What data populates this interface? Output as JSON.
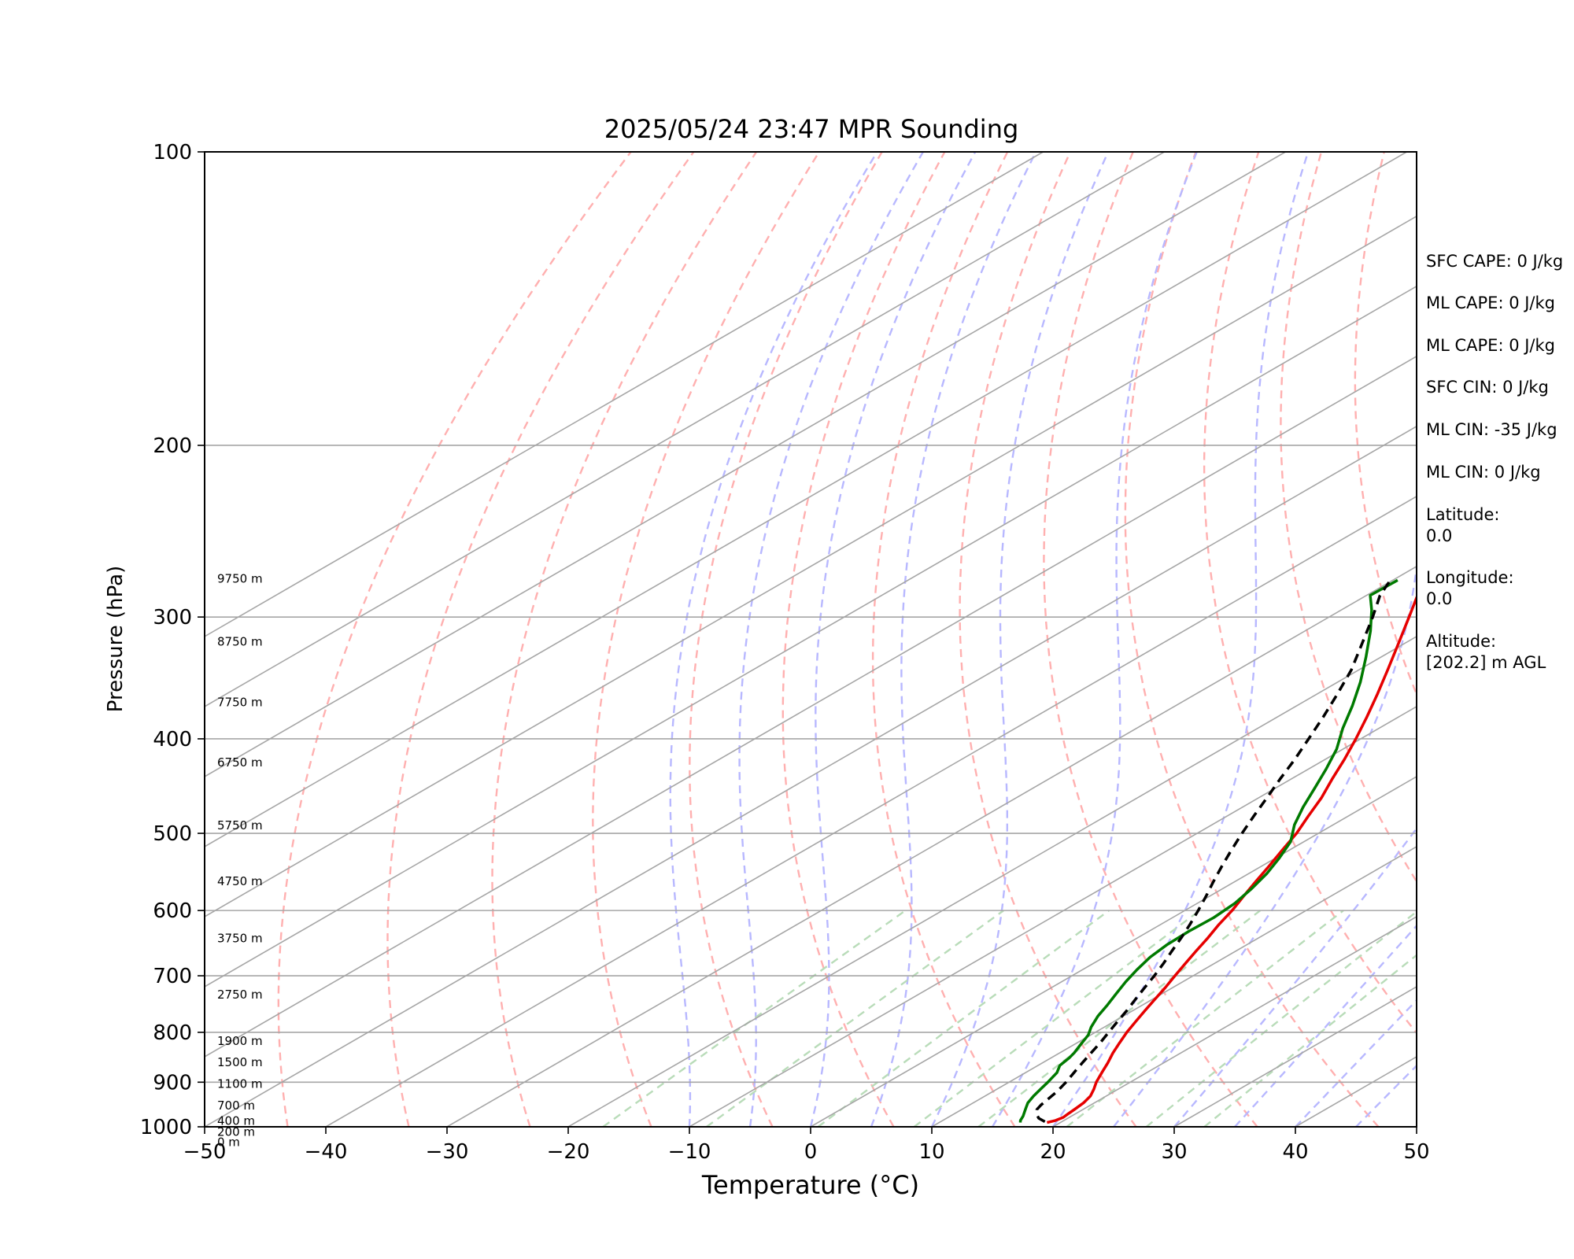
{
  "chart_data": {
    "type": "line",
    "title": "2025/05/24 23:47 MPR Sounding",
    "xlabel": "Temperature (°C)",
    "ylabel": "Pressure (hPa)",
    "xlim": [
      -50,
      50
    ],
    "ylim": [
      1000,
      100
    ],
    "y_scale": "log",
    "skew": "skew-T log-P",
    "grid": true,
    "x_ticks": [
      -50,
      -40,
      -30,
      -20,
      -10,
      0,
      10,
      20,
      30,
      40,
      50
    ],
    "x_tick_labels": [
      "−50",
      "−40",
      "−30",
      "−20",
      "−10",
      "0",
      "10",
      "20",
      "30",
      "40",
      "50"
    ],
    "y_ticks": [
      100,
      200,
      300,
      400,
      500,
      600,
      700,
      800,
      900,
      1000
    ],
    "y_tick_labels": [
      "100",
      "200",
      "300",
      "400",
      "500",
      "600",
      "700",
      "800",
      "900",
      "1000"
    ],
    "isotherms_c": [
      -120,
      -110,
      -100,
      -90,
      -80,
      -70,
      -60,
      -50,
      -40,
      -30,
      -20,
      -10,
      0,
      10,
      20,
      30,
      40,
      50
    ],
    "dry_adiabats_theta_k": [
      230,
      240,
      250,
      260,
      270,
      280,
      290,
      300,
      310,
      320,
      330,
      340,
      350,
      360,
      370,
      380,
      390
    ],
    "moist_adiabats_start_c": [
      -10,
      -5,
      0,
      5,
      10,
      15,
      20,
      25,
      30,
      35,
      40,
      45
    ],
    "mixing_ratio_lines": [
      0.001,
      0.002,
      0.004,
      0.007,
      0.01,
      0.016,
      0.024,
      0.032
    ],
    "height_labels": [
      {
        "label": "9750 m",
        "p": 274
      },
      {
        "label": "8750 m",
        "p": 318
      },
      {
        "label": "7750 m",
        "p": 367
      },
      {
        "label": "6750 m",
        "p": 423
      },
      {
        "label": "5750 m",
        "p": 491
      },
      {
        "label": "4750 m",
        "p": 560
      },
      {
        "label": "3750 m",
        "p": 641
      },
      {
        "label": "2750 m",
        "p": 732
      },
      {
        "label": "1900 m",
        "p": 817
      },
      {
        "label": "1500 m",
        "p": 859
      },
      {
        "label": "1100 m",
        "p": 904
      },
      {
        "label": "700 m",
        "p": 951
      },
      {
        "label": "400 m",
        "p": 986
      },
      {
        "label": "200 m",
        "p": 1012
      },
      {
        "label": "0 m",
        "p": 1037
      }
    ],
    "series": [
      {
        "name": "",
        "kind": "temperature",
        "color": "#e60000",
        "p": [
          990,
          985,
          978,
          970,
          960,
          945,
          930,
          915,
          900,
          880,
          860,
          840,
          820,
          800,
          780,
          760,
          740,
          720,
          700,
          680,
          660,
          640,
          620,
          600,
          580,
          560,
          540,
          520,
          500,
          480,
          460,
          440,
          420,
          400,
          380,
          360,
          340,
          320,
          300,
          285,
          275
        ],
        "t": [
          18.9,
          19.3,
          19.5,
          19.4,
          19.3,
          19.1,
          18.7,
          18.0,
          17.2,
          16.3,
          15.4,
          14.4,
          13.5,
          12.6,
          11.8,
          11.0,
          10.2,
          9.4,
          8.5,
          7.6,
          6.7,
          5.8,
          4.8,
          3.9,
          2.8,
          1.7,
          0.6,
          -0.6,
          -1.8,
          -3.3,
          -4.8,
          -6.6,
          -8.4,
          -10.4,
          -12.6,
          -15.0,
          -17.6,
          -20.4,
          -23.4,
          -25.8,
          -27.5
        ]
      },
      {
        "name": "",
        "kind": "dewpoint",
        "color": "#007a00",
        "p": [
          990,
          985,
          975,
          965,
          955,
          945,
          930,
          915,
          900,
          880,
          865,
          850,
          840,
          825,
          805,
          790,
          770,
          750,
          730,
          710,
          690,
          670,
          650,
          630,
          610,
          590,
          570,
          550,
          530,
          510,
          490,
          470,
          450,
          430,
          410,
          390,
          370,
          350,
          330,
          310,
          295,
          285,
          275
        ],
        "t": [
          16.7,
          16.4,
          16.0,
          15.5,
          15.0,
          14.5,
          14.0,
          13.6,
          13.2,
          12.6,
          11.8,
          11.5,
          11.2,
          10.6,
          9.8,
          8.9,
          7.9,
          7.1,
          6.2,
          5.3,
          4.5,
          3.8,
          3.4,
          3.3,
          3.4,
          3.1,
          2.4,
          1.5,
          0.3,
          -1.1,
          -3.2,
          -5.0,
          -6.7,
          -8.5,
          -10.5,
          -13.0,
          -15.4,
          -18.1,
          -21.2,
          -24.6,
          -27.5,
          -29.7,
          -29.6
        ]
      },
      {
        "name": "",
        "kind": "parcel",
        "color": "#000000",
        "p": [
          988,
          980,
          970,
          960,
          950,
          920,
          900,
          880,
          860,
          840,
          820,
          800,
          780,
          760,
          740,
          720,
          700,
          680,
          660,
          640,
          620,
          600,
          580,
          560,
          540,
          520,
          500,
          480,
          460,
          440,
          420,
          400,
          380,
          360,
          340,
          320,
          300,
          285,
          275
        ],
        "t": [
          18.6,
          17.6,
          16.8,
          16.2,
          15.9,
          15.3,
          14.7,
          14.0,
          13.3,
          12.6,
          11.9,
          11.1,
          10.3,
          9.5,
          8.6,
          7.7,
          6.8,
          5.8,
          4.7,
          3.6,
          2.4,
          1.1,
          -0.3,
          -1.8,
          -3.3,
          -4.8,
          -6.3,
          -7.8,
          -9.3,
          -10.9,
          -12.5,
          -14.3,
          -16.2,
          -18.3,
          -20.6,
          -23.4,
          -26.4,
          -28.9,
          -30.2
        ]
      }
    ],
    "annotations": [
      "SFC CAPE: 0 J/kg",
      "ML CAPE: 0 J/kg",
      "ML CAPE: 0 J/kg",
      "SFC CIN: 0 J/kg",
      "ML CIN: -35 J/kg",
      "ML CIN: 0 J/kg",
      "Latitude:",
      "0.0",
      "Longitude:",
      "0.0",
      "Altitude:",
      "[202.2] m AGL"
    ]
  }
}
